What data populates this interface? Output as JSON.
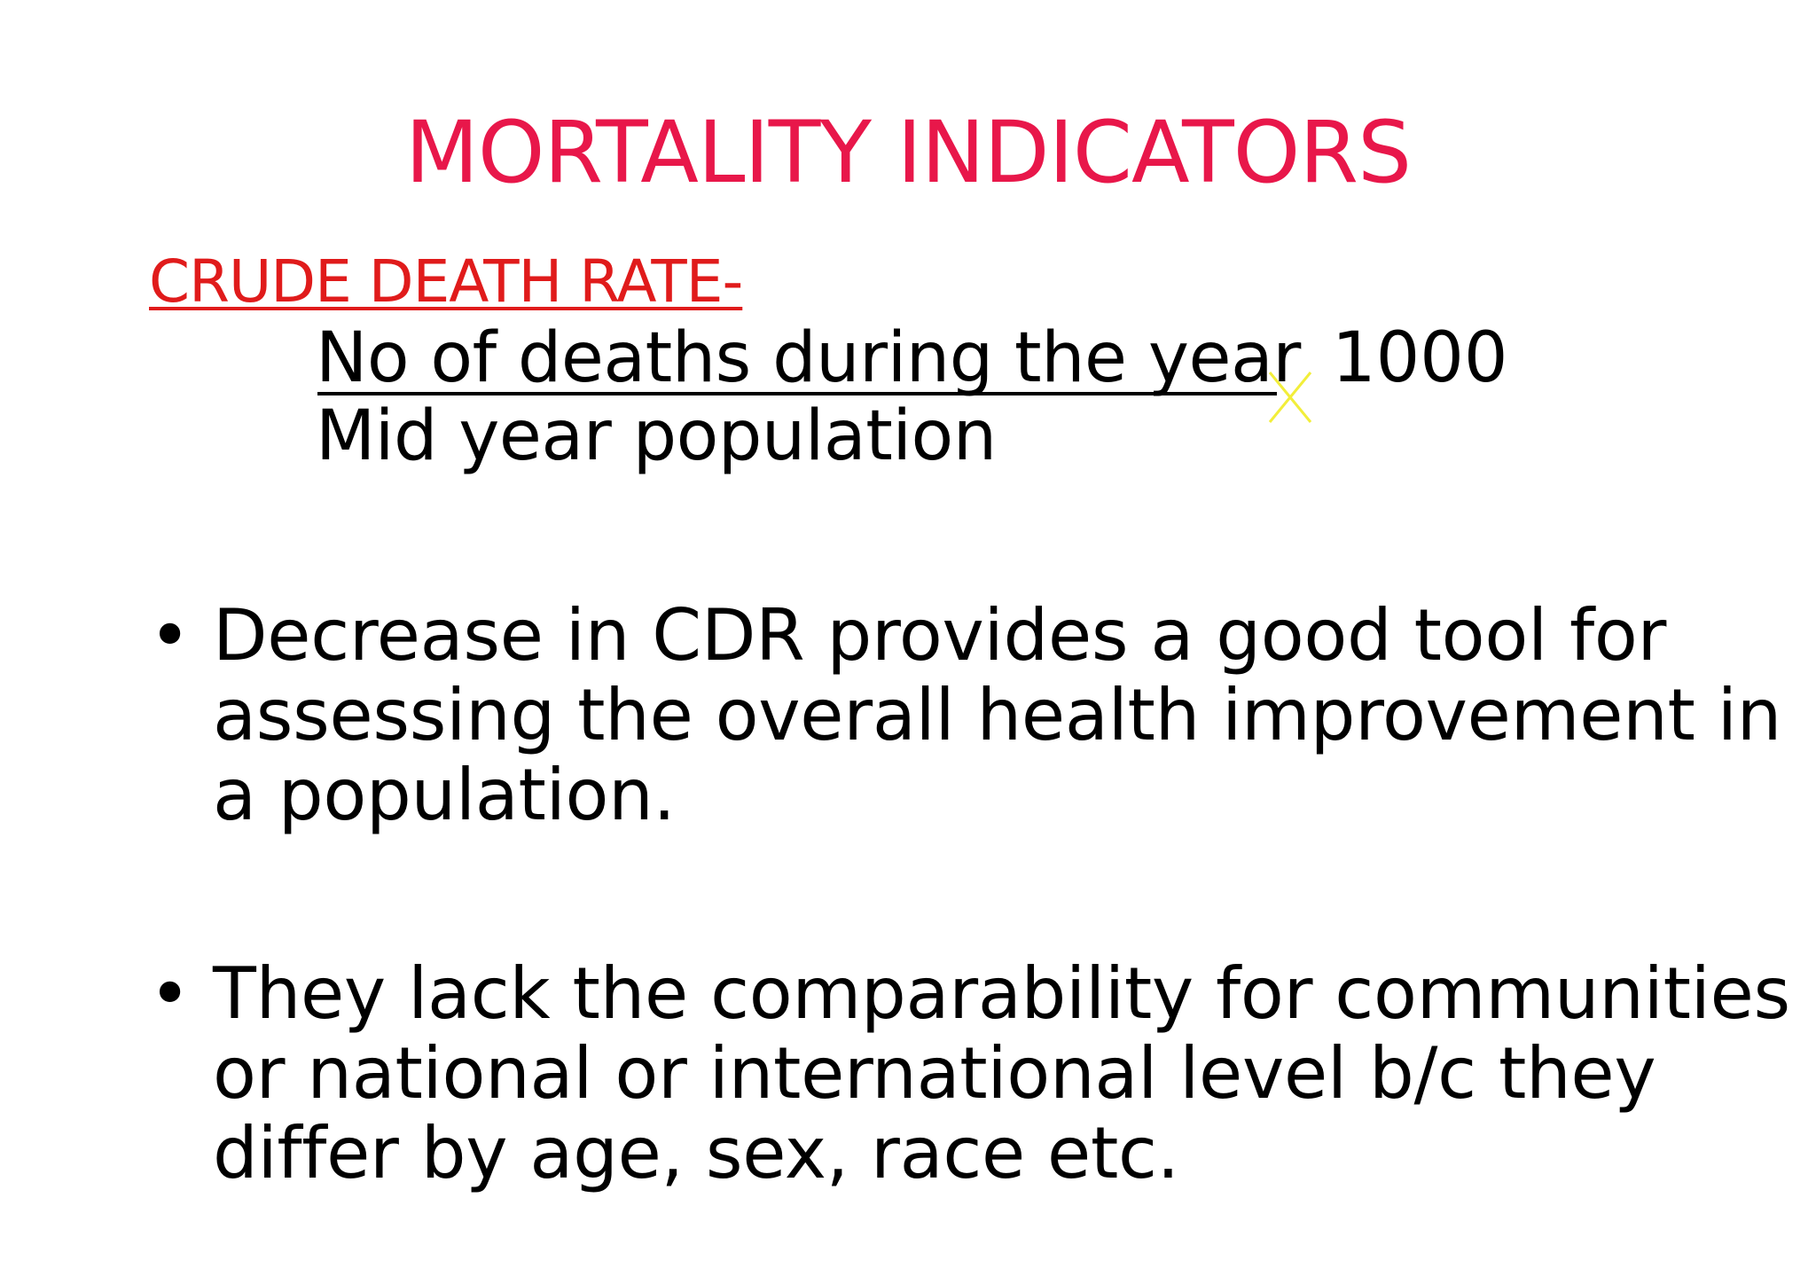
{
  "slide": {
    "title": "MORTALITY INDICATORS",
    "subtitle": "CRUDE DEATH RATE-",
    "formula": {
      "numerator": "No of deaths during the year",
      "denominator": "Mid year population",
      "multiplier": "1000",
      "operator_icon": "times-icon"
    },
    "bullets": [
      {
        "lines": [
          "Decrease in CDR provides a good tool for",
          "assessing the overall health improvement in",
          "a population."
        ]
      },
      {
        "lines": [
          "They lack the comparability for communities",
          "or national or international level b/c they",
          "differ by age, sex, race etc."
        ]
      }
    ],
    "bullet_glyph": "•"
  },
  "colors": {
    "title": "#e8174a",
    "subtitle": "#e01b1b",
    "body_text": "#000000",
    "operator_mark": "#f2ee3a",
    "background": "#ffffff"
  }
}
